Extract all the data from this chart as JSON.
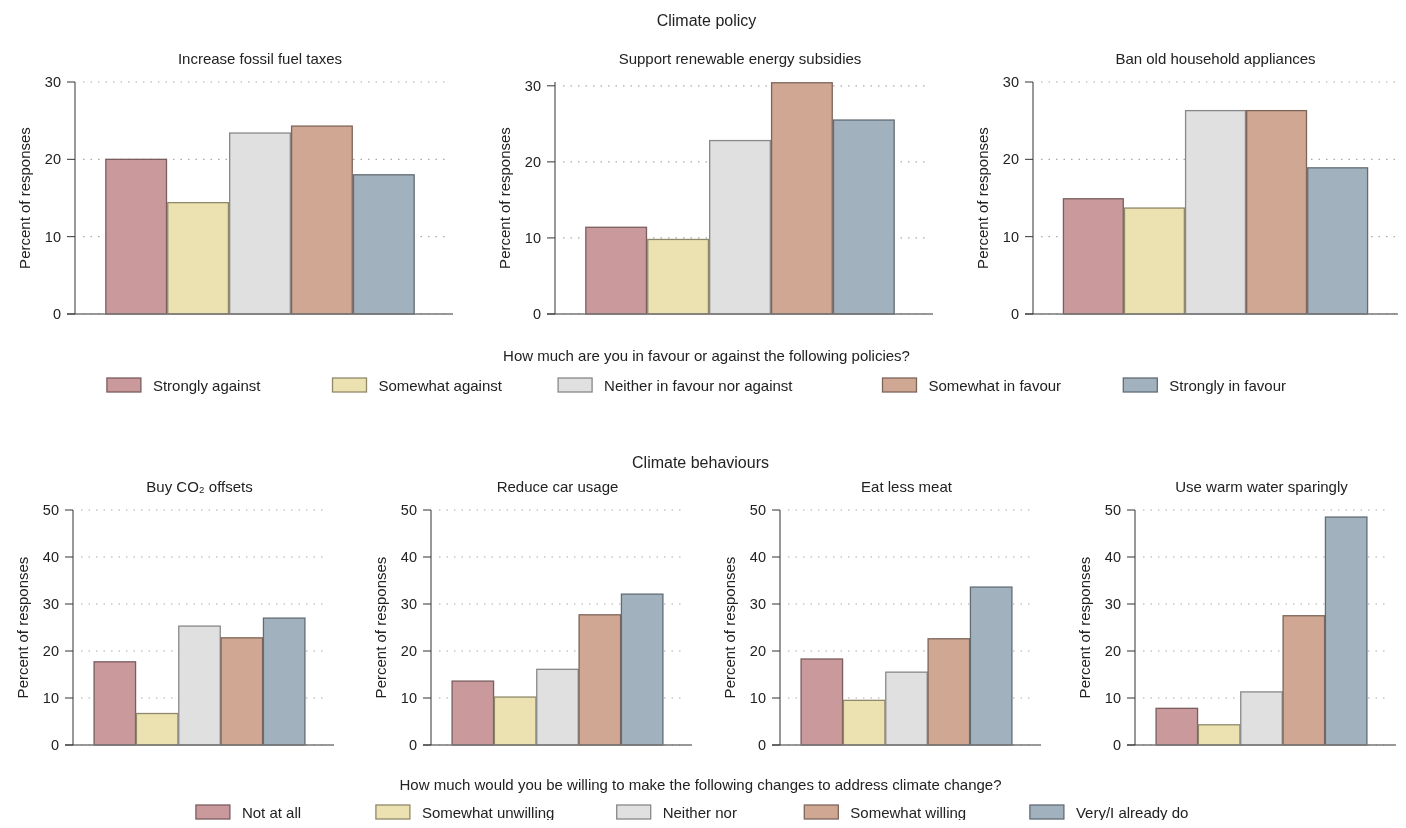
{
  "chart_data": [
    {
      "type": "bar",
      "title": "Increase fossil fuel taxes",
      "ylabel": "Percent of responses",
      "categories": [
        null
      ],
      "ylim": [
        0,
        30
      ],
      "yticks": [
        0,
        10,
        20,
        30
      ],
      "grid": "y",
      "legend": "bottom",
      "legend_title": "How much are you in favour or against the following policies?",
      "annotations": [
        "Climate policy"
      ],
      "series": [
        {
          "name": "Strongly against",
          "color": "#c9999b",
          "values": [
            20.0
          ]
        },
        {
          "name": "Somewhat against",
          "color": "#ece1b0",
          "values": [
            14.4
          ]
        },
        {
          "name": "Neither in favour nor against",
          "color": "#e0e0e0",
          "values": [
            23.4
          ]
        },
        {
          "name": "Somewhat in favour",
          "color": "#cfa793",
          "values": [
            24.3
          ]
        },
        {
          "name": "Strongly in favour",
          "color": "#a1b2be",
          "values": [
            18.0
          ]
        }
      ]
    },
    {
      "type": "bar",
      "title": "Support renewable energy subsidies",
      "ylabel": "Percent of responses",
      "categories": [
        null
      ],
      "ylim": [
        0,
        30.5
      ],
      "yticks": [
        0,
        10,
        20,
        30
      ],
      "grid": "y",
      "series": [
        {
          "color": "#c9999b",
          "values": [
            11.4
          ]
        },
        {
          "color": "#ece1b0",
          "values": [
            9.8
          ]
        },
        {
          "color": "#e0e0e0",
          "values": [
            22.8
          ]
        },
        {
          "color": "#cfa793",
          "values": [
            30.4
          ]
        },
        {
          "color": "#a1b2be",
          "values": [
            25.5
          ]
        }
      ]
    },
    {
      "type": "bar",
      "title": "Ban old household appliances",
      "ylabel": "Percent of responses",
      "categories": [
        null
      ],
      "ylim": [
        0,
        30
      ],
      "yticks": [
        0,
        10,
        20,
        30
      ],
      "grid": "y",
      "series": [
        {
          "color": "#c9999b",
          "values": [
            14.9
          ]
        },
        {
          "color": "#ece1b0",
          "values": [
            13.7
          ]
        },
        {
          "color": "#e0e0e0",
          "values": [
            26.3
          ]
        },
        {
          "color": "#cfa793",
          "values": [
            26.3
          ]
        },
        {
          "color": "#a1b2be",
          "values": [
            18.9
          ]
        }
      ]
    },
    {
      "type": "bar",
      "title": "Buy CO₂ offsets",
      "ylabel": "Percent of responses",
      "categories": [
        null
      ],
      "ylim": [
        0,
        50
      ],
      "yticks": [
        0,
        10,
        20,
        30,
        40,
        50
      ],
      "grid": "y",
      "legend": "bottom",
      "legend_title": "How much would you be willing to make the following changes to address climate change?",
      "annotations": [
        "Climate behaviours"
      ],
      "series": [
        {
          "name": "Not at all",
          "color": "#c9999b",
          "values": [
            17.7
          ]
        },
        {
          "name": "Somewhat unwilling",
          "color": "#ece1b0",
          "values": [
            6.7
          ]
        },
        {
          "name": "Neither nor",
          "color": "#e0e0e0",
          "values": [
            25.3
          ]
        },
        {
          "name": "Somewhat willing",
          "color": "#cfa793",
          "values": [
            22.8
          ]
        },
        {
          "name": "Very/I already do",
          "color": "#a1b2be",
          "values": [
            27.0
          ]
        }
      ]
    },
    {
      "type": "bar",
      "title": "Reduce car usage",
      "ylabel": "Percent of responses",
      "categories": [
        null
      ],
      "ylim": [
        0,
        50
      ],
      "yticks": [
        0,
        10,
        20,
        30,
        40,
        50
      ],
      "grid": "y",
      "series": [
        {
          "color": "#c9999b",
          "values": [
            13.6
          ]
        },
        {
          "color": "#ece1b0",
          "values": [
            10.2
          ]
        },
        {
          "color": "#e0e0e0",
          "values": [
            16.1
          ]
        },
        {
          "color": "#cfa793",
          "values": [
            27.7
          ]
        },
        {
          "color": "#a1b2be",
          "values": [
            32.1
          ]
        }
      ]
    },
    {
      "type": "bar",
      "title": "Eat less meat",
      "ylabel": "Percent of responses",
      "categories": [
        null
      ],
      "ylim": [
        0,
        50
      ],
      "yticks": [
        0,
        10,
        20,
        30,
        40,
        50
      ],
      "grid": "y",
      "series": [
        {
          "color": "#c9999b",
          "values": [
            18.3
          ]
        },
        {
          "color": "#ece1b0",
          "values": [
            9.5
          ]
        },
        {
          "color": "#e0e0e0",
          "values": [
            15.5
          ]
        },
        {
          "color": "#cfa793",
          "values": [
            22.6
          ]
        },
        {
          "color": "#a1b2be",
          "values": [
            33.6
          ]
        }
      ]
    },
    {
      "type": "bar",
      "title": "Use warm water sparingly",
      "ylabel": "Percent of responses",
      "categories": [
        null
      ],
      "ylim": [
        0,
        50
      ],
      "yticks": [
        0,
        10,
        20,
        30,
        40,
        50
      ],
      "grid": "y",
      "series": [
        {
          "color": "#c9999b",
          "values": [
            7.8
          ]
        },
        {
          "color": "#ece1b0",
          "values": [
            4.3
          ]
        },
        {
          "color": "#e0e0e0",
          "values": [
            11.3
          ]
        },
        {
          "color": "#cfa793",
          "values": [
            27.5
          ]
        },
        {
          "color": "#a1b2be",
          "values": [
            48.5
          ]
        }
      ]
    }
  ]
}
